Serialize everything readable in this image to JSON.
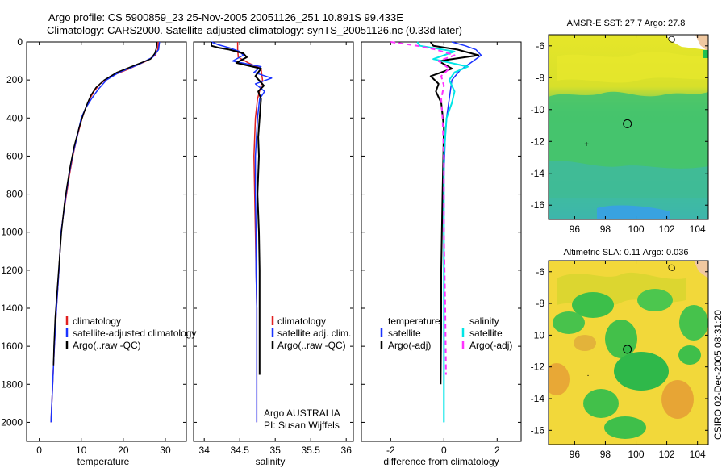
{
  "header": {
    "line1": "Argo profile: CS 5900859_23 25-Nov-2005 20051126_251 10.891S 99.433E",
    "line2": "Climatology: CARS2000. Satellite-adjusted climatology: synTS_20051126.nc (0.33d later)"
  },
  "footer": {
    "org": "Argo AUSTRALIA",
    "pi": "PI: Susan Wijffels",
    "stamp": "CSIRO 02-Dec-2005 08:31:20"
  },
  "colors": {
    "climatology": "#e02020",
    "satellite": "#1a33ff",
    "argo": "#000000",
    "sat_diff": "#00e6e6",
    "argo_sal_diff": "#ff33ff"
  },
  "chart_data": [
    {
      "id": "temperature",
      "type": "line",
      "xlabel": "temperature",
      "xlim": [
        -3,
        35
      ],
      "ylim": [
        0,
        2100
      ],
      "y_reversed": true,
      "xticks": [
        0,
        10,
        20,
        30
      ],
      "yticks": [
        0,
        200,
        400,
        600,
        800,
        1000,
        1200,
        1400,
        1600,
        1800,
        2000
      ],
      "legend": [
        {
          "label": "climatology",
          "color_key": "climatology"
        },
        {
          "label": "satellite-adjusted climatology",
          "color_key": "satellite"
        },
        {
          "label": "Argo(..raw -QC)",
          "color_key": "argo"
        }
      ],
      "series": [
        {
          "name": "climatology",
          "color_key": "climatology",
          "width": 1.5,
          "points": [
            [
              28.3,
              0
            ],
            [
              28.2,
              40
            ],
            [
              27.6,
              70
            ],
            [
              25.5,
              100
            ],
            [
              21.5,
              140
            ],
            [
              17.0,
              180
            ],
            [
              14.5,
              220
            ],
            [
              13.0,
              260
            ],
            [
              12.0,
              300
            ],
            [
              11.0,
              350
            ],
            [
              10.2,
              400
            ],
            [
              9.0,
              500
            ],
            [
              8.0,
              600
            ],
            [
              7.2,
              700
            ],
            [
              6.5,
              800
            ],
            [
              5.8,
              900
            ],
            [
              5.2,
              1000
            ],
            [
              4.7,
              1200
            ],
            [
              4.1,
              1400
            ],
            [
              3.6,
              1600
            ],
            [
              3.2,
              1800
            ],
            [
              2.8,
              2000
            ]
          ]
        },
        {
          "name": "satellite",
          "color_key": "satellite",
          "width": 1.5,
          "points": [
            [
              28.6,
              0
            ],
            [
              28.4,
              40
            ],
            [
              27.0,
              80
            ],
            [
              23.5,
              120
            ],
            [
              19.0,
              160
            ],
            [
              16.0,
              200
            ],
            [
              14.0,
              250
            ],
            [
              12.4,
              300
            ],
            [
              11.0,
              350
            ],
            [
              10.0,
              400
            ],
            [
              9.0,
              500
            ],
            [
              7.9,
              600
            ],
            [
              7.1,
              700
            ],
            [
              6.4,
              800
            ],
            [
              5.8,
              900
            ],
            [
              5.2,
              1000
            ],
            [
              4.7,
              1200
            ],
            [
              4.1,
              1400
            ],
            [
              3.6,
              1600
            ],
            [
              3.2,
              1800
            ],
            [
              2.8,
              2000
            ]
          ]
        },
        {
          "name": "Argo",
          "color_key": "argo",
          "width": 1.5,
          "points": [
            [
              28.0,
              0
            ],
            [
              27.9,
              30
            ],
            [
              27.5,
              60
            ],
            [
              26.5,
              90
            ],
            [
              23.0,
              120
            ],
            [
              18.5,
              160
            ],
            [
              15.5,
              200
            ],
            [
              13.5,
              240
            ],
            [
              12.3,
              280
            ],
            [
              11.5,
              320
            ],
            [
              10.5,
              380
            ],
            [
              9.5,
              450
            ],
            [
              8.3,
              550
            ],
            [
              7.4,
              650
            ],
            [
              6.6,
              760
            ],
            [
              6.0,
              850
            ],
            [
              5.3,
              1000
            ],
            [
              4.8,
              1150
            ],
            [
              4.3,
              1300
            ],
            [
              3.8,
              1450
            ],
            [
              3.5,
              1600
            ],
            [
              3.4,
              1700
            ]
          ]
        }
      ]
    },
    {
      "id": "salinity",
      "type": "line",
      "xlabel": "salinity",
      "xlim": [
        33.85,
        36.1
      ],
      "ylim": [
        0,
        2100
      ],
      "y_reversed": true,
      "xticks": [
        34,
        34.5,
        35,
        35.5,
        36
      ],
      "yticks": [
        0,
        200,
        400,
        600,
        800,
        1000,
        1200,
        1400,
        1600,
        1800,
        2000
      ],
      "legend": [
        {
          "label": "climatology",
          "color_key": "climatology"
        },
        {
          "label": "satellite adj. clim.",
          "color_key": "satellite"
        },
        {
          "label": "Argo(..raw -QC)",
          "color_key": "argo"
        }
      ],
      "series": [
        {
          "name": "climatology",
          "color_key": "climatology",
          "width": 1.5,
          "points": [
            [
              34.47,
              0
            ],
            [
              34.47,
              40
            ],
            [
              34.48,
              80
            ],
            [
              34.62,
              110
            ],
            [
              34.8,
              140
            ],
            [
              34.82,
              200
            ],
            [
              34.75,
              300
            ],
            [
              34.72,
              400
            ],
            [
              34.7,
              600
            ],
            [
              34.71,
              800
            ],
            [
              34.72,
              1000
            ],
            [
              34.73,
              1200
            ],
            [
              34.74,
              1400
            ],
            [
              34.74,
              1600
            ],
            [
              34.74,
              1800
            ],
            [
              34.74,
              2000
            ]
          ]
        },
        {
          "name": "satellite",
          "color_key": "satellite",
          "width": 1.5,
          "points": [
            [
              34.1,
              0
            ],
            [
              34.2,
              15
            ],
            [
              34.35,
              30
            ],
            [
              34.5,
              50
            ],
            [
              34.55,
              70
            ],
            [
              34.4,
              100
            ],
            [
              34.8,
              130
            ],
            [
              34.7,
              160
            ],
            [
              34.95,
              190
            ],
            [
              34.72,
              220
            ],
            [
              34.85,
              260
            ],
            [
              34.78,
              300
            ],
            [
              34.75,
              400
            ],
            [
              34.72,
              600
            ],
            [
              34.72,
              800
            ],
            [
              34.73,
              1000
            ],
            [
              34.73,
              1200
            ],
            [
              34.74,
              1400
            ],
            [
              34.74,
              1600
            ],
            [
              34.74,
              1800
            ],
            [
              34.74,
              2000
            ]
          ]
        },
        {
          "name": "Argo",
          "color_key": "argo",
          "width": 2,
          "points": [
            [
              34.1,
              0
            ],
            [
              34.1,
              20
            ],
            [
              34.2,
              30
            ],
            [
              34.35,
              40
            ],
            [
              34.55,
              60
            ],
            [
              34.6,
              80
            ],
            [
              34.45,
              110
            ],
            [
              34.8,
              140
            ],
            [
              34.72,
              180
            ],
            [
              34.84,
              230
            ],
            [
              34.76,
              260
            ],
            [
              34.8,
              300
            ],
            [
              34.78,
              400
            ],
            [
              34.76,
              500
            ],
            [
              34.77,
              600
            ],
            [
              34.75,
              800
            ],
            [
              34.77,
              1000
            ],
            [
              34.78,
              1200
            ],
            [
              34.78,
              1400
            ],
            [
              34.78,
              1600
            ],
            [
              34.78,
              1750
            ]
          ]
        }
      ]
    },
    {
      "id": "difference",
      "type": "line",
      "xlabel": "difference from climatology",
      "xlim": [
        -3.1,
        2.9
      ],
      "ylim": [
        0,
        2100
      ],
      "y_reversed": true,
      "xticks": [
        -2,
        0,
        2
      ],
      "yticks": [
        0,
        200,
        400,
        600,
        800,
        1000,
        1200,
        1400,
        1600,
        1800,
        2000
      ],
      "legend_left_title": "temperature",
      "legend_right_title": "salinity",
      "legend": [
        {
          "label": "satellite",
          "color_key": "satellite"
        },
        {
          "label": "Argo(-adj)",
          "color_key": "argo"
        },
        {
          "label": "satellite",
          "color_key": "sat_diff"
        },
        {
          "label": "Argo(-adj)",
          "color_key": "argo_sal_diff"
        }
      ],
      "series": [
        {
          "name": "T satellite",
          "color_key": "satellite",
          "width": 1.5,
          "points": [
            [
              0.3,
              0
            ],
            [
              0.8,
              20
            ],
            [
              1.2,
              40
            ],
            [
              1.4,
              70
            ],
            [
              1.1,
              100
            ],
            [
              0.6,
              150
            ],
            [
              0.3,
              200
            ],
            [
              0.2,
              300
            ],
            [
              0.1,
              400
            ],
            [
              0.05,
              500
            ],
            [
              0.0,
              700
            ],
            [
              0.0,
              2000
            ]
          ]
        },
        {
          "name": "T Argo",
          "color_key": "argo",
          "width": 2,
          "points": [
            [
              -0.5,
              0
            ],
            [
              -0.4,
              20
            ],
            [
              0.5,
              40
            ],
            [
              1.3,
              70
            ],
            [
              -0.2,
              100
            ],
            [
              0.3,
              140
            ],
            [
              -0.5,
              180
            ],
            [
              -0.2,
              220
            ],
            [
              -0.3,
              260
            ],
            [
              -0.1,
              320
            ],
            [
              0.0,
              450
            ],
            [
              -0.05,
              800
            ],
            [
              -0.1,
              1200
            ],
            [
              -0.1,
              1500
            ],
            [
              -0.12,
              1800
            ]
          ]
        },
        {
          "name": "S satellite",
          "color_key": "sat_diff",
          "width": 2,
          "points": [
            [
              -1.0,
              0
            ],
            [
              -0.9,
              20
            ],
            [
              0.4,
              50
            ],
            [
              -0.4,
              90
            ],
            [
              0.9,
              130
            ],
            [
              0.4,
              160
            ],
            [
              0.2,
              200
            ],
            [
              0.4,
              260
            ],
            [
              0.3,
              320
            ],
            [
              0.1,
              400
            ],
            [
              0.0,
              600
            ],
            [
              0.0,
              2000
            ]
          ]
        },
        {
          "name": "S Argo",
          "color_key": "argo_sal_diff",
          "width": 2,
          "dash": "6,4",
          "points": [
            [
              -2.0,
              0
            ],
            [
              -1.0,
              20
            ],
            [
              -0.3,
              40
            ],
            [
              0.4,
              70
            ],
            [
              -0.2,
              100
            ],
            [
              0.2,
              140
            ],
            [
              -0.1,
              180
            ],
            [
              0.0,
              230
            ],
            [
              -0.1,
              300
            ],
            [
              -0.05,
              400
            ],
            [
              0.0,
              600
            ],
            [
              0.0,
              1000
            ],
            [
              0.05,
              1400
            ],
            [
              0.08,
              1750
            ]
          ]
        }
      ]
    },
    {
      "id": "sst_map",
      "type": "heatmap",
      "title": "AMSR-E SST: 27.7  Argo: 27.8",
      "xlim": [
        94.3,
        104.7
      ],
      "ylim": [
        -16.9,
        -5.3
      ],
      "xticks": [
        96,
        98,
        100,
        102,
        104
      ],
      "yticks": [
        -6,
        -8,
        -10,
        -12,
        -14,
        -16
      ],
      "float_lon": 99.433,
      "float_lat": -10.891
    },
    {
      "id": "sla_map",
      "type": "heatmap",
      "title": "Altimetric SLA: 0.11  Argo: 0.036",
      "xlim": [
        94.3,
        104.7
      ],
      "ylim": [
        -16.9,
        -5.3
      ],
      "xticks": [
        96,
        98,
        100,
        102,
        104
      ],
      "yticks": [
        -6,
        -8,
        -10,
        -12,
        -14,
        -16
      ],
      "float_lon": 99.433,
      "float_lat": -10.891
    }
  ]
}
